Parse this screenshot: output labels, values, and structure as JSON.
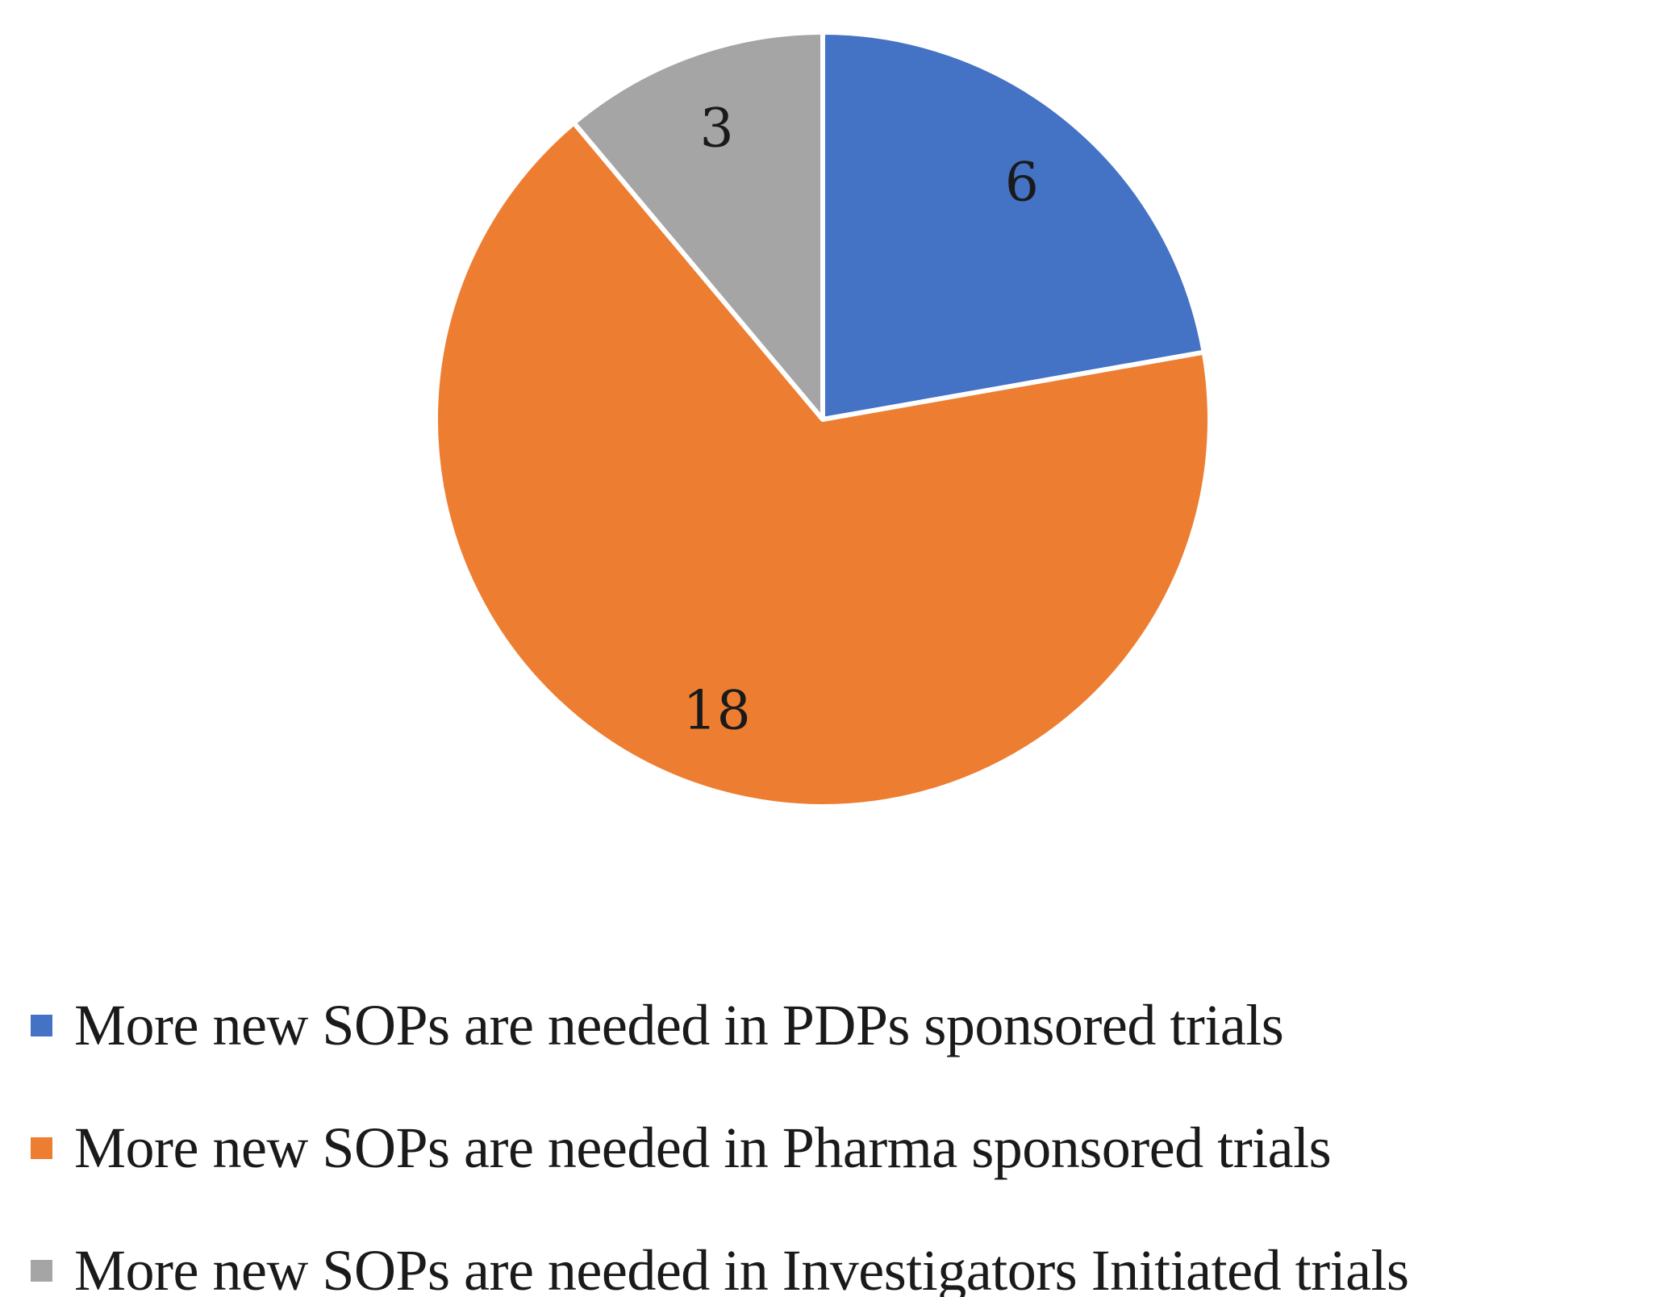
{
  "chart_data": {
    "type": "pie",
    "categories": [
      "More new SOPs are needed in PDPs sponsored trials",
      "More new SOPs are needed in Pharma sponsored trials",
      "More new SOPs are needed in Investigators Initiated trials"
    ],
    "values": [
      6,
      18,
      3
    ],
    "data_labels": [
      "6",
      "18",
      "3"
    ],
    "colors": [
      "#4472C4",
      "#ED7D31",
      "#A5A5A5"
    ],
    "start_angle_deg": 0,
    "direction": "clockwise",
    "legend_placement": "bottom-left",
    "title": "",
    "xlabel": "",
    "ylabel": ""
  },
  "legend": {
    "items": [
      {
        "label": "More new SOPs are needed in PDPs sponsored trials",
        "color": "#4472C4"
      },
      {
        "label": "More new SOPs are needed in Pharma sponsored trials",
        "color": "#ED7D31"
      },
      {
        "label": "More new SOPs are needed in Investigators Initiated trials",
        "color": "#A5A5A5"
      }
    ]
  }
}
